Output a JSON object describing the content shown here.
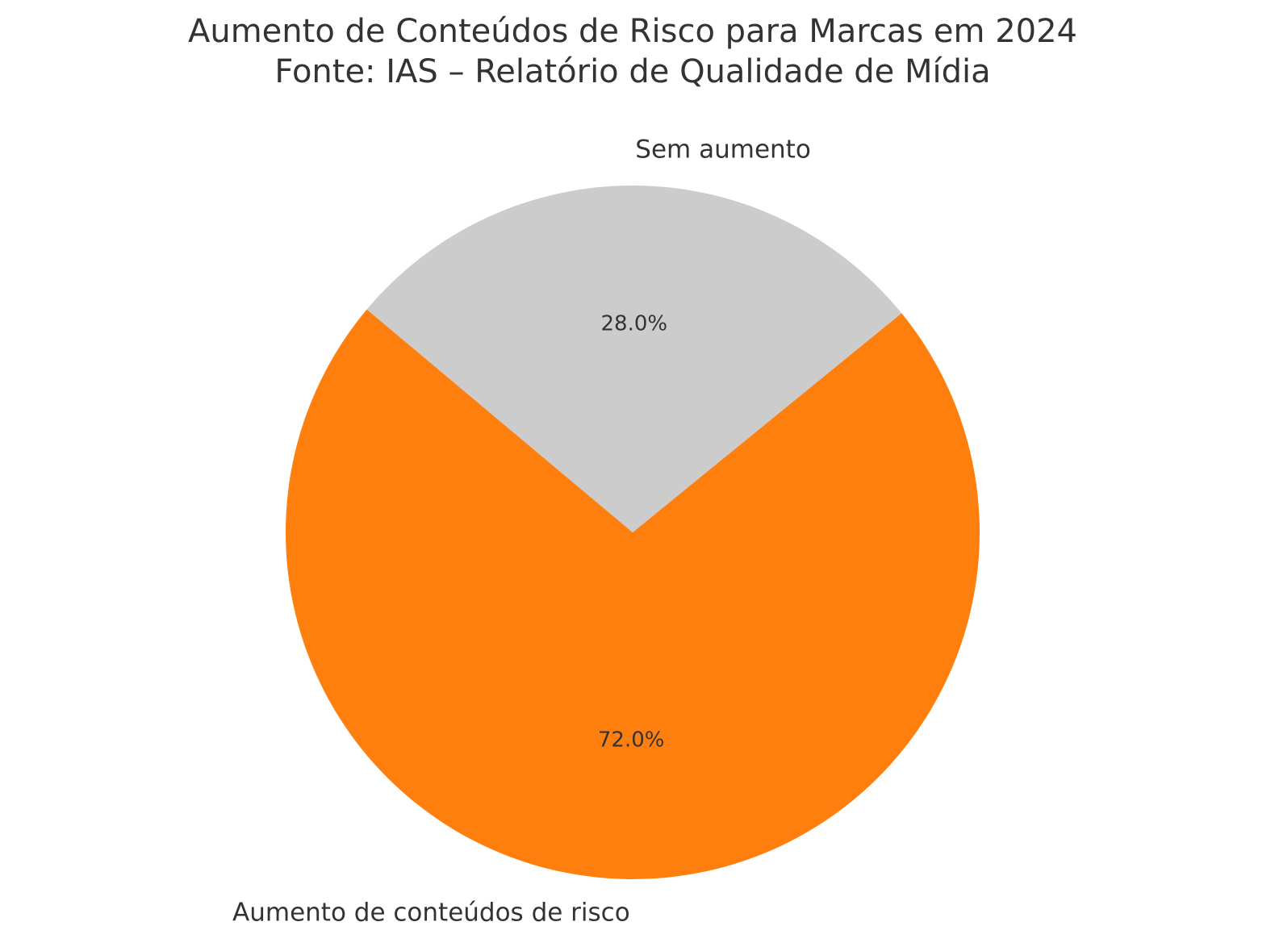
{
  "chart_data": {
    "type": "pie",
    "title": "Aumento de Conteúdos de Risco para Marcas em 2024",
    "subtitle": "Fonte: IAS – Relatório de Qualidade de Mídia",
    "categories": [
      "Aumento de conteúdos de risco",
      "Sem aumento"
    ],
    "values": [
      72,
      28
    ],
    "value_labels": [
      "72.0%",
      "28.0%"
    ],
    "colors": [
      "#ff7f0e",
      "#cccccc"
    ]
  }
}
